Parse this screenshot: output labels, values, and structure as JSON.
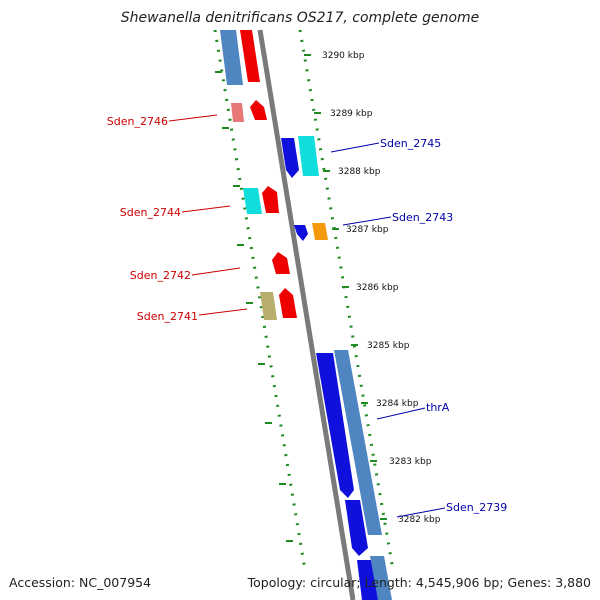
{
  "title": "Shewanella denitrificans OS217, complete genome",
  "footer": {
    "accession": "Accession: NC_007954",
    "stats": "Topology: circular; Length: 4,545,906 bp; Genes: 3,880"
  },
  "ticks": [
    "3290 kbp",
    "3289 kbp",
    "3288 kbp",
    "3287 kbp",
    "3286 kbp",
    "3285 kbp",
    "3284 kbp",
    "3283 kbp",
    "3282 kbp"
  ],
  "left_labels": [
    "Sden_2746",
    "Sden_2744",
    "Sden_2742",
    "Sden_2741"
  ],
  "right_labels": [
    "Sden_2745",
    "Sden_2743",
    "thrA",
    "Sden_2739"
  ],
  "colors": {
    "backbone": "#7a7a7a",
    "dots": "#1f8a1f",
    "forward_red": "#ee0000",
    "reverse_blue": "#1010dd",
    "steelblue": "#4f86c2",
    "cyan": "#11dddd",
    "orange": "#f59a0a",
    "khaki": "#b7ae6c",
    "pink": "#e87878",
    "left_label": "#cc0000",
    "right_label": "#0000aa"
  }
}
